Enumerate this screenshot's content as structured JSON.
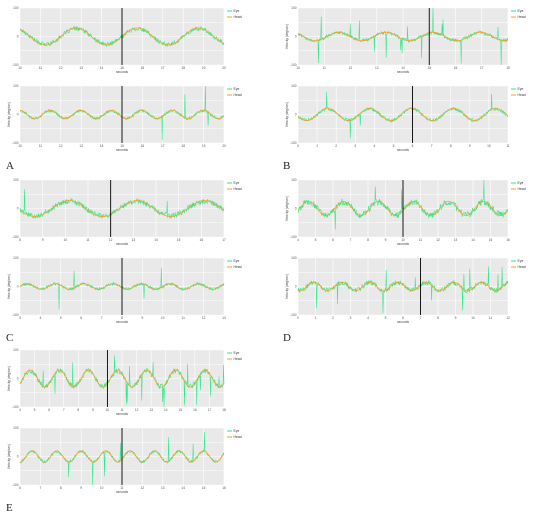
{
  "panels": [
    {
      "letter": "A",
      "charts": [
        {
          "type": "line",
          "xlabel": "seconds",
          "ylabel": "",
          "ylim": [
            -100,
            100
          ],
          "yticks": [
            "100",
            "0",
            "-100"
          ],
          "xticks": [
            "10",
            "11",
            "12",
            "13",
            "14",
            "15",
            "16",
            "17",
            "18",
            "19",
            "20"
          ],
          "cursor": 15,
          "head_amp": 30,
          "head_period": 3,
          "head_phase": 0,
          "saccade_rate": 0,
          "eye_noise": 8,
          "series": [
            {
              "name": "Eye"
            },
            {
              "name": "Head"
            }
          ]
        },
        {
          "type": "line",
          "xlabel": "seconds",
          "ylabel": "Velocity (deg/sec)",
          "ylim": [
            -100,
            100
          ],
          "yticks": [
            "100",
            "0",
            "-100"
          ],
          "xticks": [
            "10",
            "11",
            "12",
            "13",
            "14",
            "15",
            "16",
            "17",
            "18",
            "19",
            "20"
          ],
          "cursor": 15,
          "head_amp": 15,
          "head_period": 1.5,
          "head_phase": 0.6,
          "saccade_rate": 0.45,
          "eye_noise": 5,
          "series": [
            {
              "name": "Eye"
            },
            {
              "name": "Head"
            }
          ]
        }
      ]
    },
    {
      "letter": "B",
      "charts": [
        {
          "type": "line",
          "xlabel": "seconds",
          "ylabel": "Velocity (deg/sec)",
          "ylim": [
            -100,
            100
          ],
          "yticks": [
            "100",
            "0",
            "-100"
          ],
          "xticks": [
            "10",
            "11",
            "12",
            "13",
            "14",
            "15",
            "16",
            "17",
            "18"
          ],
          "cursor": 15,
          "head_amp": 15,
          "head_period": 1.8,
          "head_phase": 0.3,
          "saccade_rate": 0.9,
          "eye_noise": 6,
          "series": [
            {
              "name": "Eye"
            },
            {
              "name": "Head"
            }
          ]
        },
        {
          "type": "line",
          "xlabel": "seconds",
          "ylabel": "Velocity (deg/sec)",
          "ylim": [
            -100,
            100
          ],
          "yticks": [
            "100",
            "0",
            "-100"
          ],
          "xticks": [
            "0",
            "1",
            "2",
            "3",
            "4",
            "5",
            "6",
            "7",
            "8",
            "9",
            "10",
            "11"
          ],
          "cursor": 6,
          "head_amp": 22,
          "head_period": 2.2,
          "head_phase": 1.0,
          "saccade_rate": 0.4,
          "eye_noise": 6,
          "series": [
            {
              "name": "Eye"
            },
            {
              "name": "Head"
            }
          ]
        }
      ]
    },
    {
      "letter": "C",
      "charts": [
        {
          "type": "line",
          "xlabel": "seconds",
          "ylabel": "",
          "ylim": [
            -100,
            100
          ],
          "yticks": [
            "100",
            "0",
            "-100"
          ],
          "xticks": [
            "8",
            "9",
            "10",
            "11",
            "12",
            "13",
            "14",
            "15",
            "16",
            "17"
          ],
          "cursor": 12,
          "head_amp": 28,
          "head_period": 3,
          "head_phase": 0.4,
          "saccade_rate": 0.25,
          "eye_noise": 10,
          "series": [
            {
              "name": "Eye"
            },
            {
              "name": "Head"
            }
          ]
        },
        {
          "type": "line",
          "xlabel": "seconds",
          "ylabel": "Velocity (deg/sec)",
          "ylim": [
            -100,
            100
          ],
          "yticks": [
            "100",
            "0",
            "-100"
          ],
          "xticks": [
            "3",
            "4",
            "5",
            "6",
            "7",
            "8",
            "9",
            "10",
            "11",
            "12",
            "13"
          ],
          "cursor": 8,
          "head_amp": 10,
          "head_period": 1.4,
          "head_phase": 0.2,
          "saccade_rate": 0.5,
          "eye_noise": 5,
          "series": [
            {
              "name": "Eye"
            },
            {
              "name": "Head"
            }
          ]
        }
      ]
    },
    {
      "letter": "D",
      "charts": [
        {
          "type": "line",
          "xlabel": "seconds",
          "ylabel": "Velocity (deg/sec)",
          "ylim": [
            -100,
            100
          ],
          "yticks": [
            "100",
            "0",
            "-100"
          ],
          "xticks": [
            "4",
            "5",
            "6",
            "7",
            "8",
            "9",
            "10",
            "11",
            "12",
            "13",
            "14",
            "15",
            "16"
          ],
          "cursor": 10,
          "head_amp": 25,
          "head_period": 2,
          "head_phase": 0.1,
          "saccade_rate": 0.55,
          "eye_noise": 12,
          "series": [
            {
              "name": "Eye"
            },
            {
              "name": "Head"
            }
          ]
        },
        {
          "type": "line",
          "xlabel": "seconds",
          "ylabel": "Velocity (deg/sec)",
          "ylim": [
            -100,
            100
          ],
          "yticks": [
            "100",
            "0",
            "-100"
          ],
          "xticks": [
            "0",
            "1",
            "2",
            "3",
            "4",
            "5",
            "6",
            "7",
            "8",
            "9",
            "10",
            "11",
            "12"
          ],
          "cursor": 7,
          "head_amp": 15,
          "head_period": 1.6,
          "head_phase": 0.5,
          "saccade_rate": 0.5,
          "eye_noise": 9,
          "series": [
            {
              "name": "Eye"
            },
            {
              "name": "Head"
            }
          ]
        }
      ]
    },
    {
      "letter": "E",
      "charts": [
        {
          "type": "line",
          "xlabel": "seconds",
          "ylabel": "Velocity (deg/sec)",
          "ylim": [
            -100,
            100
          ],
          "yticks": [
            "100",
            "0",
            "-100"
          ],
          "xticks": [
            "4",
            "5",
            "6",
            "7",
            "8",
            "9",
            "10",
            "11",
            "12",
            "13",
            "14",
            "15",
            "16",
            "17",
            "18"
          ],
          "cursor": 10,
          "head_amp": 30,
          "head_period": 2,
          "head_phase": 0.2,
          "saccade_rate": 1.0,
          "eye_noise": 9,
          "series": [
            {
              "name": "Eye"
            },
            {
              "name": "Head"
            }
          ]
        },
        {
          "type": "line",
          "xlabel": "seconds",
          "ylabel": "Velocity (deg/sec)",
          "ylim": [
            -100,
            100
          ],
          "yticks": [
            "100",
            "0",
            "-100"
          ],
          "xticks": [
            "6",
            "7",
            "8",
            "9",
            "10",
            "11",
            "12",
            "13",
            "14",
            "15",
            "16"
          ],
          "cursor": 11,
          "head_amp": 20,
          "head_period": 1.2,
          "head_phase": 0.3,
          "saccade_rate": 0.6,
          "eye_noise": 5,
          "series": [
            {
              "name": "Eye"
            },
            {
              "name": "Head"
            }
          ]
        }
      ]
    }
  ],
  "colors": {
    "eye": "#2de88a",
    "head": "#f5a020",
    "plot_background": "#e9e9e9",
    "cursor": "#000000"
  }
}
